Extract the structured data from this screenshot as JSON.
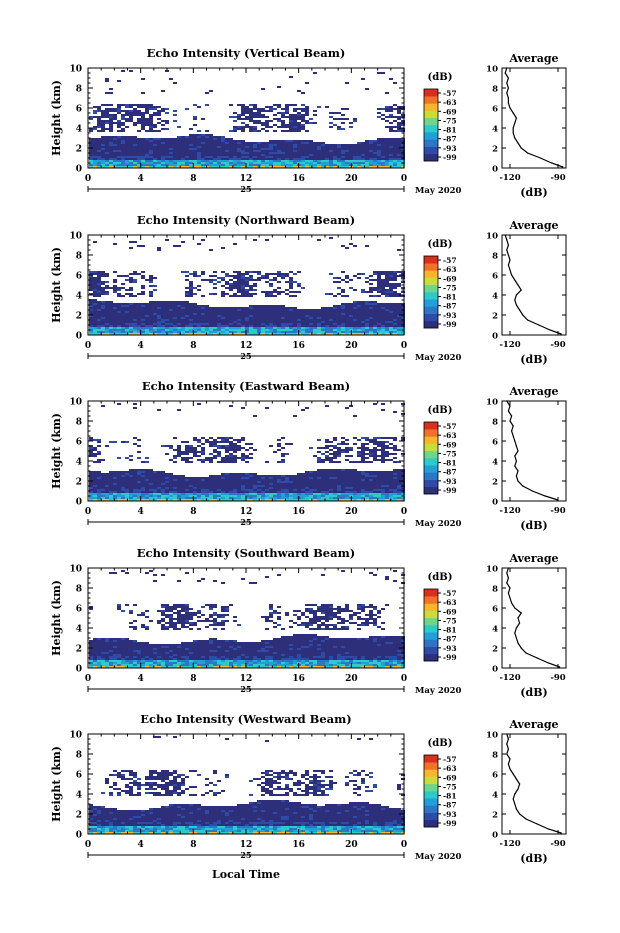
{
  "figure": {
    "xlabel": "Local Time",
    "ylabel": "Height (km)",
    "date_label": "May 2020",
    "day_label": "25",
    "cbar_unit": "(dB)",
    "avg_title": "Average",
    "avg_xlabel": "(dB)"
  },
  "chart_data": [
    {
      "type": "heatmap",
      "title": "Echo Intensity (Vertical Beam)",
      "xlabel": "",
      "ylabel": "Height (km)",
      "xlim": [
        0,
        24
      ],
      "ylim": [
        0,
        10
      ],
      "xticks": [
        "0",
        "4",
        "8",
        "12",
        "16",
        "20",
        "0"
      ],
      "yticks": [
        "0",
        "2",
        "4",
        "6",
        "8",
        "10"
      ],
      "colorbar": {
        "label": "(dB)",
        "ticks": [
          "-57",
          "-63",
          "-69",
          "-75",
          "-81",
          "-87",
          "-93",
          "-99"
        ]
      },
      "layers": [
        {
          "bottom_km": 0.2,
          "top_km": 3.0,
          "coverage": "continuous"
        },
        {
          "bottom_km": 3.8,
          "top_km": 6.5,
          "coverage": "patchy"
        },
        {
          "bottom_km": 7.5,
          "top_km": 10.0,
          "coverage": "sparse"
        }
      ],
      "average_profile": {
        "xticks": [
          "-120",
          "-90"
        ],
        "xlim": [
          -125,
          -85
        ],
        "xlabel": "(dB)",
        "height_km": [
          0.1,
          0.5,
          1,
          1.5,
          2,
          2.5,
          3,
          3.5,
          4,
          4.5,
          5,
          5.5,
          6,
          6.5,
          7,
          7.5,
          8,
          8.5,
          9,
          9.5,
          10
        ],
        "db": [
          -87,
          -94,
          -101,
          -109,
          -113,
          -115,
          -117,
          -118,
          -118,
          -117,
          -116,
          -118,
          -120,
          -121,
          -121,
          -122,
          -121,
          -122,
          -121,
          -123,
          -122
        ]
      }
    },
    {
      "type": "heatmap",
      "title": "Echo Intensity (Northward Beam)",
      "xlabel": "",
      "ylabel": "Height (km)",
      "xlim": [
        0,
        24
      ],
      "ylim": [
        0,
        10
      ],
      "xticks": [
        "0",
        "4",
        "8",
        "12",
        "16",
        "20",
        "0"
      ],
      "yticks": [
        "0",
        "2",
        "4",
        "6",
        "8",
        "10"
      ],
      "colorbar": {
        "label": "(dB)",
        "ticks": [
          "-57",
          "-63",
          "-69",
          "-75",
          "-81",
          "-87",
          "-93",
          "-99"
        ]
      },
      "layers": [
        {
          "bottom_km": 0.2,
          "top_km": 3.2,
          "coverage": "continuous"
        },
        {
          "bottom_km": 4.0,
          "top_km": 6.6,
          "coverage": "patchy"
        },
        {
          "bottom_km": 8.5,
          "top_km": 10.0,
          "coverage": "sparse"
        }
      ],
      "average_profile": {
        "xticks": [
          "-120",
          "-90"
        ],
        "xlim": [
          -125,
          -85
        ],
        "xlabel": "(dB)",
        "height_km": [
          0.1,
          0.5,
          1,
          1.5,
          2,
          2.5,
          3,
          3.5,
          4,
          4.5,
          5,
          5.5,
          6,
          6.5,
          7,
          7.5,
          8,
          8.5,
          9,
          9.5,
          10
        ],
        "db": [
          -88,
          -95,
          -102,
          -109,
          -112,
          -114,
          -116,
          -117,
          -116,
          -113,
          -115,
          -117,
          -119,
          -120,
          -121,
          -120,
          -121,
          -122,
          -121,
          -122,
          -123
        ]
      }
    },
    {
      "type": "heatmap",
      "title": "Echo Intensity (Eastward Beam)",
      "xlabel": "",
      "ylabel": "Height (km)",
      "xlim": [
        0,
        24
      ],
      "ylim": [
        0,
        10
      ],
      "xticks": [
        "0",
        "4",
        "8",
        "12",
        "16",
        "20",
        "0"
      ],
      "yticks": [
        "0",
        "2",
        "4",
        "6",
        "8",
        "10"
      ],
      "colorbar": {
        "label": "(dB)",
        "ticks": [
          "-57",
          "-63",
          "-69",
          "-75",
          "-81",
          "-87",
          "-93",
          "-99"
        ]
      },
      "layers": [
        {
          "bottom_km": 0.2,
          "top_km": 3.0,
          "coverage": "continuous"
        },
        {
          "bottom_km": 4.0,
          "top_km": 6.5,
          "coverage": "patchy"
        },
        {
          "bottom_km": 8.5,
          "top_km": 10.0,
          "coverage": "sparse"
        }
      ],
      "average_profile": {
        "xticks": [
          "-120",
          "-90"
        ],
        "xlim": [
          -125,
          -85
        ],
        "xlabel": "(dB)",
        "height_km": [
          0.1,
          0.5,
          1,
          1.5,
          2,
          2.5,
          3,
          3.5,
          4,
          4.5,
          5,
          5.5,
          6,
          6.5,
          7,
          7.5,
          8,
          8.5,
          9,
          9.5,
          10
        ],
        "db": [
          -90,
          -98,
          -106,
          -112,
          -115,
          -116,
          -115,
          -117,
          -116,
          -117,
          -115,
          -116,
          -117,
          -118,
          -119,
          -118,
          -120,
          -119,
          -121,
          -120,
          -122
        ]
      }
    },
    {
      "type": "heatmap",
      "title": "Echo Intensity (Southward Beam)",
      "xlabel": "",
      "ylabel": "Height (km)",
      "xlim": [
        0,
        24
      ],
      "ylim": [
        0,
        10
      ],
      "xticks": [
        "0",
        "4",
        "8",
        "12",
        "16",
        "20",
        "0"
      ],
      "yticks": [
        "0",
        "2",
        "4",
        "6",
        "8",
        "10"
      ],
      "colorbar": {
        "label": "(dB)",
        "ticks": [
          "-57",
          "-63",
          "-69",
          "-75",
          "-81",
          "-87",
          "-93",
          "-99"
        ]
      },
      "layers": [
        {
          "bottom_km": 0.2,
          "top_km": 3.0,
          "coverage": "continuous"
        },
        {
          "bottom_km": 4.0,
          "top_km": 6.5,
          "coverage": "patchy"
        },
        {
          "bottom_km": 8.5,
          "top_km": 10.0,
          "coverage": "sparse"
        }
      ],
      "average_profile": {
        "xticks": [
          "-120",
          "-90"
        ],
        "xlim": [
          -125,
          -85
        ],
        "xlabel": "(dB)",
        "height_km": [
          0.1,
          0.5,
          1,
          1.5,
          2,
          2.5,
          3,
          3.5,
          4,
          4.5,
          5,
          5.5,
          6,
          6.5,
          7,
          7.5,
          8,
          8.5,
          9,
          9.5,
          10
        ],
        "db": [
          -89,
          -96,
          -103,
          -110,
          -113,
          -115,
          -116,
          -117,
          -116,
          -114,
          -115,
          -113,
          -117,
          -119,
          -120,
          -121,
          -120,
          -122,
          -121,
          -122,
          -121
        ]
      }
    },
    {
      "type": "heatmap",
      "title": "Echo Intensity (Westward Beam)",
      "xlabel": "Local Time",
      "ylabel": "Height (km)",
      "xlim": [
        0,
        24
      ],
      "ylim": [
        0,
        10
      ],
      "xticks": [
        "0",
        "4",
        "8",
        "12",
        "16",
        "20",
        "0"
      ],
      "yticks": [
        "0",
        "2",
        "4",
        "6",
        "8",
        "10"
      ],
      "colorbar": {
        "label": "(dB)",
        "ticks": [
          "-57",
          "-63",
          "-69",
          "-75",
          "-81",
          "-87",
          "-93",
          "-99"
        ]
      },
      "layers": [
        {
          "bottom_km": 0.2,
          "top_km": 3.0,
          "coverage": "continuous"
        },
        {
          "bottom_km": 4.0,
          "top_km": 6.5,
          "coverage": "patchy"
        },
        {
          "bottom_km": 9.0,
          "top_km": 10.0,
          "coverage": "sparse"
        }
      ],
      "average_profile": {
        "xticks": [
          "-120",
          "-90"
        ],
        "xlim": [
          -125,
          -85
        ],
        "xlabel": "(dB)",
        "height_km": [
          0.1,
          0.5,
          1,
          1.5,
          2,
          2.5,
          3,
          3.5,
          4,
          4.5,
          5,
          5.5,
          6,
          6.5,
          7,
          7.5,
          8,
          8.5,
          9,
          9.5,
          10
        ],
        "db": [
          -88,
          -96,
          -103,
          -110,
          -114,
          -116,
          -117,
          -118,
          -117,
          -115,
          -114,
          -116,
          -118,
          -120,
          -121,
          -120,
          -122,
          -121,
          -122,
          -121,
          -122
        ]
      }
    }
  ]
}
